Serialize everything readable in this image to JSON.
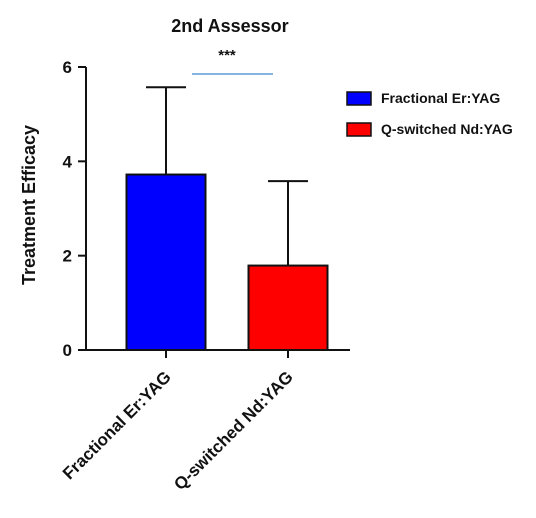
{
  "chart_data": {
    "type": "bar",
    "title": "2nd Assessor",
    "xlabel": "",
    "ylabel": "Treatment Efficacy",
    "ylim": [
      0,
      6
    ],
    "yticks": [
      0,
      2,
      4,
      6
    ],
    "categories": [
      "Fractional Er:YAG",
      "Q-switched Nd:YAG"
    ],
    "values": [
      3.72,
      1.79
    ],
    "errors": [
      1.85,
      1.79
    ],
    "colors": [
      "#0000ff",
      "#ff0000"
    ],
    "significance": {
      "label": "***",
      "between": [
        0,
        1
      ],
      "line_color": "#5b9bd5"
    },
    "legend": {
      "placement": "top-right",
      "entries": [
        {
          "name": "Fractional Er:YAG",
          "color": "#0000ff"
        },
        {
          "name": "Q-switched Nd:YAG",
          "color": "#ff0000"
        }
      ]
    },
    "grid": false
  }
}
